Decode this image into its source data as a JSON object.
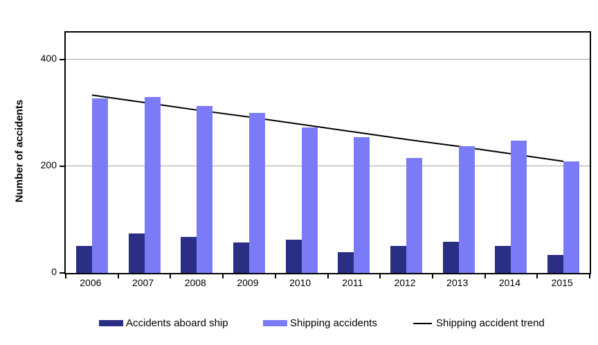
{
  "chart_data": {
    "type": "bar",
    "title": "",
    "xlabel": "",
    "ylabel": "Number of accidents",
    "categories": [
      "2006",
      "2007",
      "2008",
      "2009",
      "2010",
      "2011",
      "2012",
      "2013",
      "2014",
      "2015"
    ],
    "series": [
      {
        "name": "Accidents aboard ship",
        "type": "bar",
        "color": "#2b2e85",
        "values": [
          51,
          74,
          68,
          57,
          62,
          39,
          51,
          59,
          51,
          34
        ]
      },
      {
        "name": "Shipping accidents",
        "type": "bar",
        "color": "#7b7bf8",
        "values": [
          327,
          330,
          313,
          300,
          273,
          254,
          215,
          237,
          248,
          209
        ]
      },
      {
        "name": "Shipping accident trend",
        "type": "line",
        "color": "#000000",
        "values": [
          333,
          319,
          305,
          292,
          278,
          264,
          250,
          237,
          223,
          209
        ]
      }
    ],
    "ylim": [
      0,
      450
    ],
    "yticks": [
      0,
      200,
      400
    ],
    "grid": true,
    "legend_position": "bottom",
    "colors": {
      "gridline": "#a3a3a3",
      "axis": "#000000",
      "background": "#ffffff"
    }
  }
}
